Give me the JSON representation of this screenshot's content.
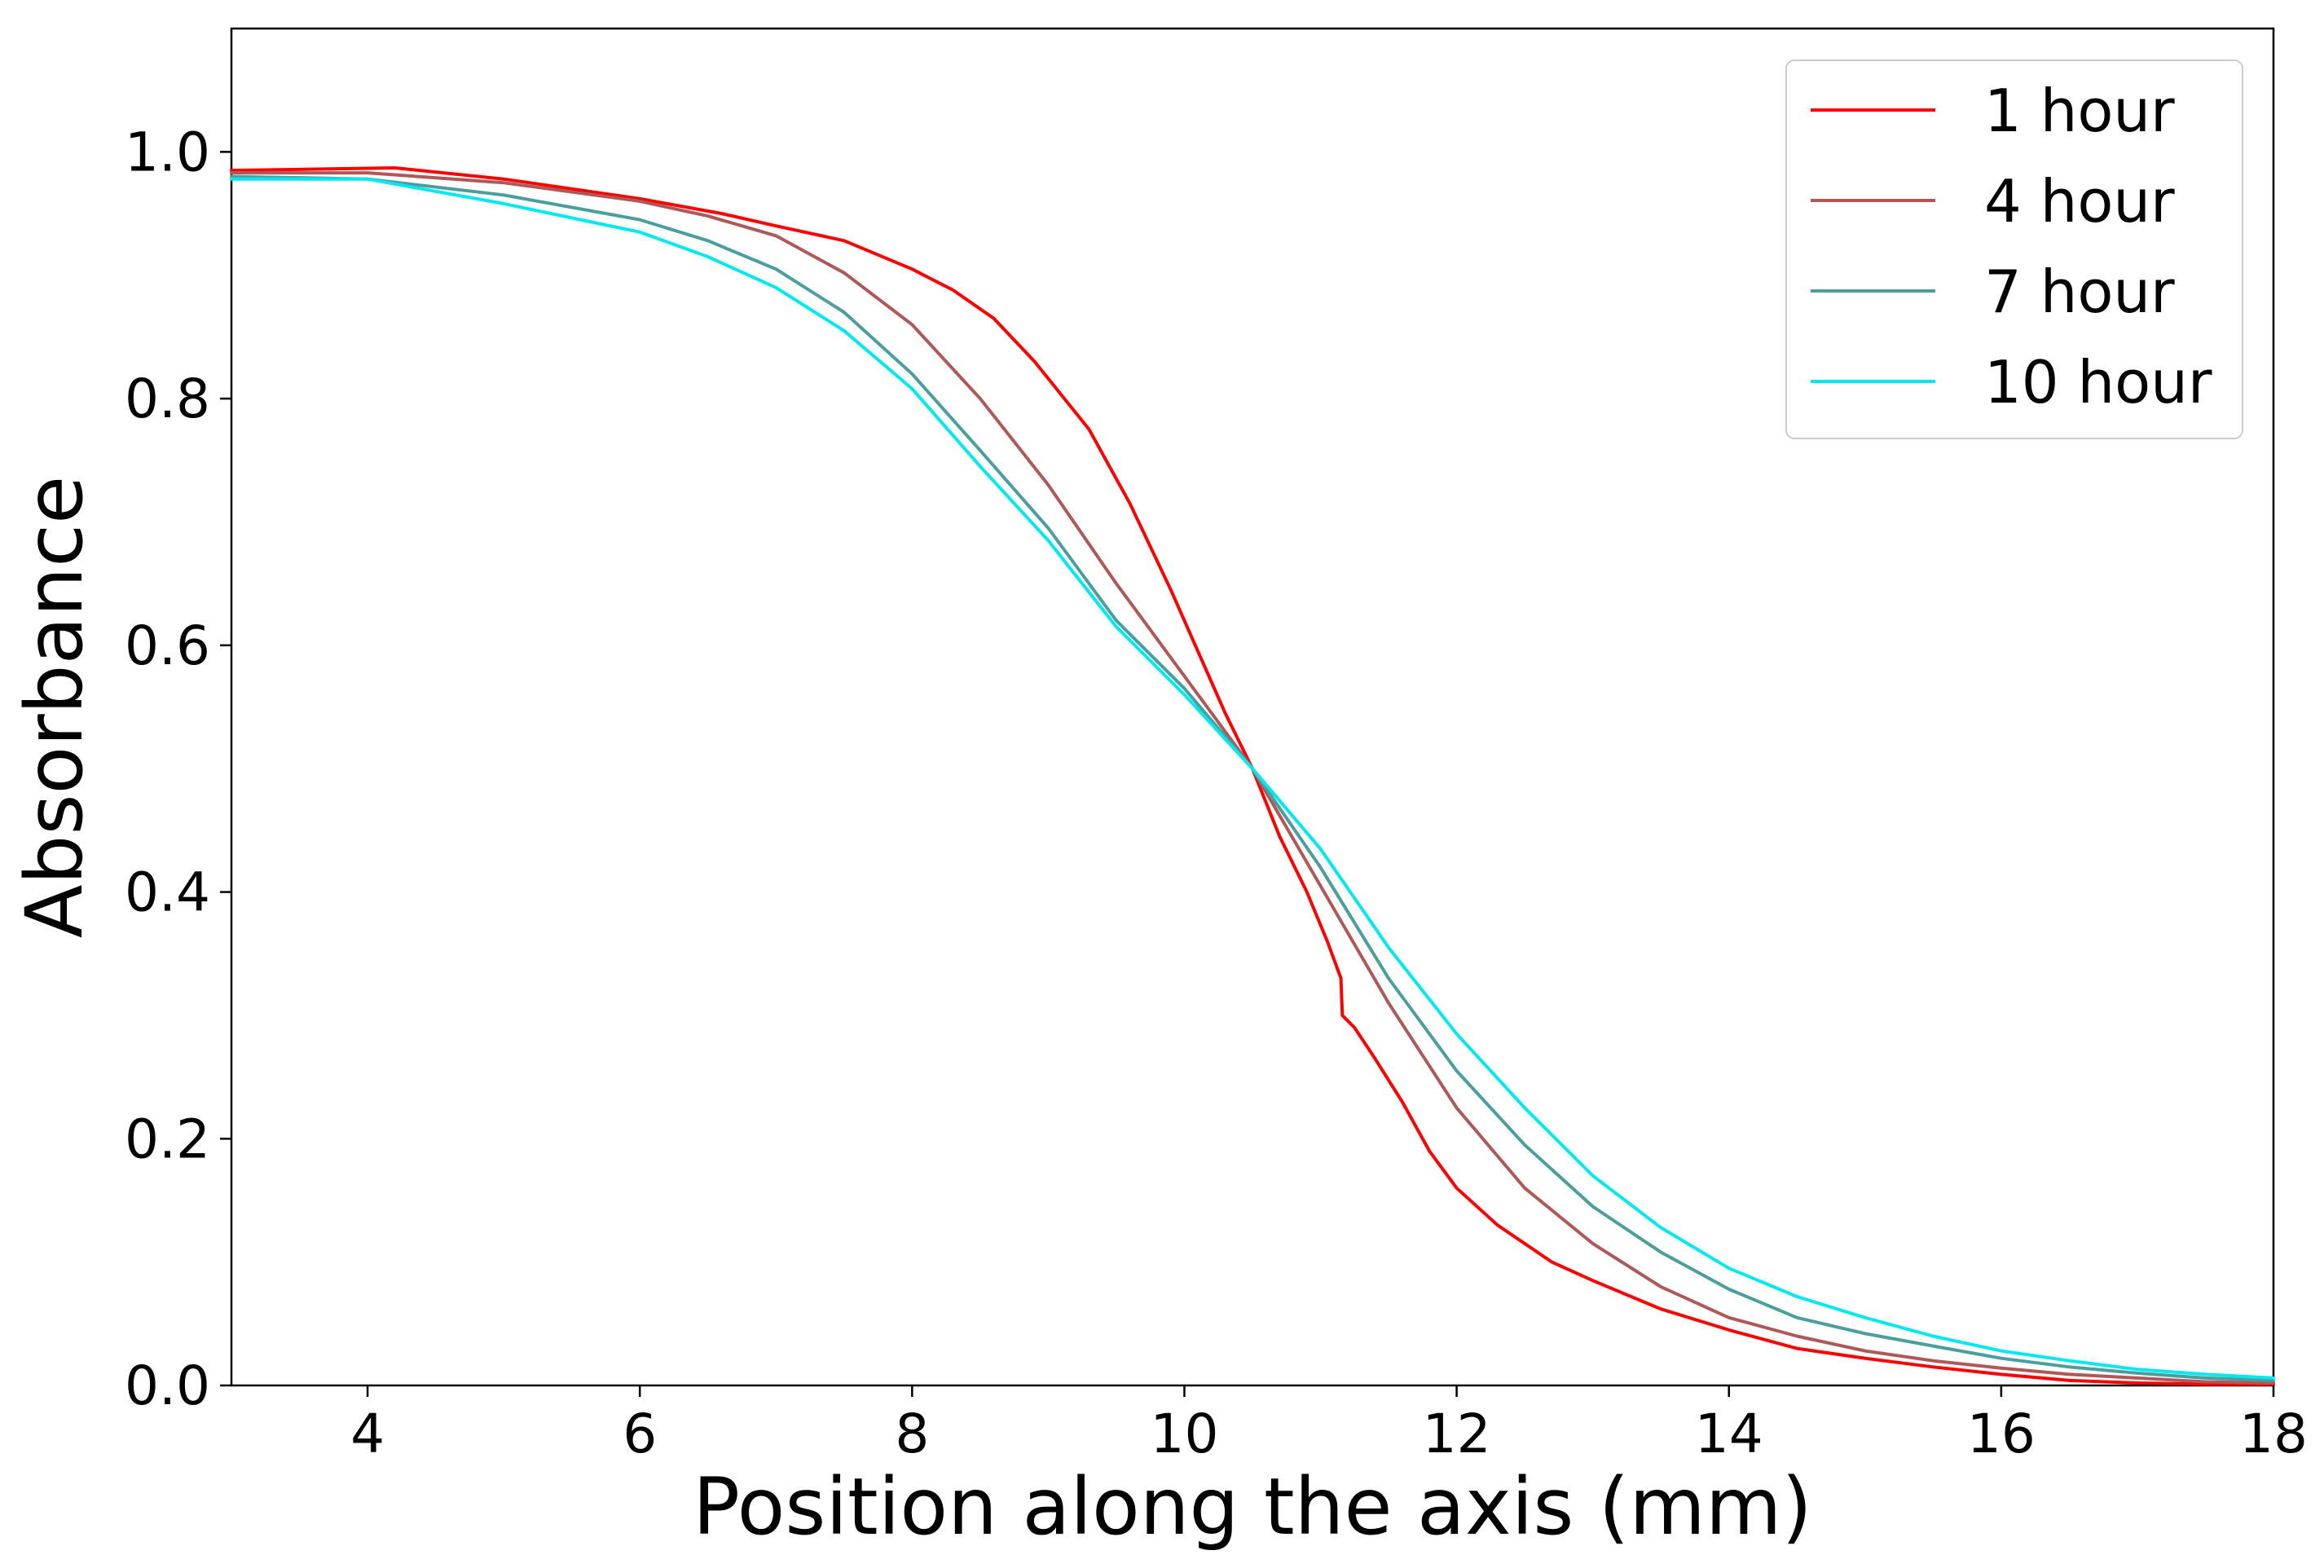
{
  "chart_data": {
    "type": "line",
    "xlabel": "Position along the axis (mm)",
    "ylabel": "Absorbance",
    "xlim": [
      3,
      18
    ],
    "ylim": [
      0,
      1.1
    ],
    "xticks": [
      {
        "value": 4,
        "label": "4"
      },
      {
        "value": 6,
        "label": "6"
      },
      {
        "value": 8,
        "label": "8"
      },
      {
        "value": 10,
        "label": "10"
      },
      {
        "value": 12,
        "label": "12"
      },
      {
        "value": 14,
        "label": "14"
      },
      {
        "value": 16,
        "label": "16"
      },
      {
        "value": 18,
        "label": "18"
      }
    ],
    "yticks": [
      {
        "value": 0.0,
        "label": "0.0"
      },
      {
        "value": 0.2,
        "label": "0.2"
      },
      {
        "value": 0.4,
        "label": "0.4"
      },
      {
        "value": 0.6,
        "label": "0.6"
      },
      {
        "value": 0.8,
        "label": "0.8"
      },
      {
        "value": 1.0,
        "label": "1.0"
      }
    ],
    "grid": false,
    "legend_position": "top-right",
    "series": [
      {
        "name": "1 hour",
        "color": "#ff0000",
        "x": [
          3.0,
          4.2,
          5.0,
          6.0,
          6.6,
          7.0,
          7.5,
          8.0,
          8.3,
          8.6,
          8.9,
          9.3,
          9.6,
          9.9,
          10.1,
          10.3,
          10.5,
          10.7,
          10.9,
          11.05,
          11.15,
          11.16,
          11.25,
          11.4,
          11.6,
          11.8,
          12.0,
          12.3,
          12.7,
          13.0,
          13.5,
          14.0,
          14.5,
          15.0,
          15.5,
          16.0,
          16.5,
          17.0,
          17.5,
          18.0
        ],
        "y": [
          0.985,
          0.987,
          0.978,
          0.962,
          0.95,
          0.94,
          0.928,
          0.905,
          0.888,
          0.865,
          0.83,
          0.775,
          0.715,
          0.645,
          0.595,
          0.545,
          0.5,
          0.445,
          0.4,
          0.36,
          0.33,
          0.3,
          0.29,
          0.265,
          0.23,
          0.19,
          0.16,
          0.13,
          0.1,
          0.085,
          0.062,
          0.045,
          0.03,
          0.022,
          0.015,
          0.009,
          0.004,
          0.002,
          0.001,
          0.001
        ]
      },
      {
        "name": "4 hour",
        "color": "#b05858",
        "x": [
          3.0,
          4.0,
          5.0,
          6.0,
          6.5,
          7.0,
          7.5,
          8.0,
          8.5,
          9.0,
          9.5,
          10.0,
          10.5,
          11.0,
          11.5,
          12.0,
          12.5,
          13.0,
          13.5,
          14.0,
          14.5,
          15.0,
          15.5,
          16.0,
          16.5,
          17.0,
          17.5,
          18.0
        ],
        "y": [
          0.983,
          0.983,
          0.975,
          0.96,
          0.948,
          0.932,
          0.902,
          0.86,
          0.8,
          0.73,
          0.65,
          0.575,
          0.5,
          0.405,
          0.31,
          0.225,
          0.16,
          0.115,
          0.08,
          0.055,
          0.04,
          0.028,
          0.02,
          0.014,
          0.009,
          0.006,
          0.003,
          0.002
        ]
      },
      {
        "name": "7 hour",
        "color": "#4a9e9e",
        "x": [
          3.0,
          4.0,
          5.0,
          6.0,
          6.5,
          7.0,
          7.5,
          8.0,
          8.5,
          9.0,
          9.5,
          10.0,
          10.5,
          11.0,
          11.5,
          12.0,
          12.5,
          13.0,
          13.5,
          14.0,
          14.5,
          15.0,
          15.5,
          16.0,
          16.5,
          17.0,
          17.5,
          18.0
        ],
        "y": [
          0.98,
          0.978,
          0.965,
          0.945,
          0.928,
          0.905,
          0.87,
          0.82,
          0.758,
          0.695,
          0.62,
          0.565,
          0.5,
          0.42,
          0.33,
          0.255,
          0.195,
          0.145,
          0.108,
          0.078,
          0.055,
          0.042,
          0.032,
          0.022,
          0.015,
          0.01,
          0.006,
          0.004
        ]
      },
      {
        "name": "10 hour",
        "color": "#00e8f0",
        "x": [
          3.0,
          4.0,
          5.0,
          6.0,
          6.5,
          7.0,
          7.5,
          8.0,
          8.5,
          9.0,
          9.5,
          10.0,
          10.5,
          11.0,
          11.5,
          12.0,
          12.5,
          13.0,
          13.5,
          14.0,
          14.5,
          15.0,
          15.5,
          16.0,
          16.5,
          17.0,
          17.5,
          18.0
        ],
        "y": [
          0.978,
          0.978,
          0.958,
          0.935,
          0.915,
          0.89,
          0.855,
          0.808,
          0.745,
          0.685,
          0.615,
          0.56,
          0.5,
          0.435,
          0.355,
          0.285,
          0.225,
          0.17,
          0.128,
          0.095,
          0.072,
          0.055,
          0.04,
          0.028,
          0.02,
          0.013,
          0.009,
          0.006
        ]
      }
    ]
  }
}
